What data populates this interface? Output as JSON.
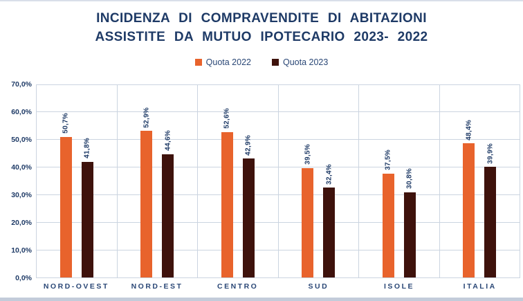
{
  "title": {
    "line1": "INCIDENZA DI COMPRAVENDITE DI ABITAZIONI",
    "line2": "ASSISTITE DA MUTUO IPOTECARIO 2023- 2022"
  },
  "colors": {
    "title_text": "#1e3a66",
    "axis_text": "#2a4776",
    "gridline": "#cbd4e0",
    "series_2022": "#e8632c",
    "series_2023": "#3e120c",
    "border_strip": "#c3ccda"
  },
  "chart_data": {
    "type": "bar",
    "title": "INCIDENZA DI COMPRAVENDITE DI ABITAZIONI ASSISTITE DA MUTUO IPOTECARIO 2023- 2022",
    "categories": [
      "NORD-OVEST",
      "NORD-EST",
      "CENTRO",
      "SUD",
      "ISOLE",
      "ITALIA"
    ],
    "series": [
      {
        "name": "Quota 2022",
        "color": "#e8632c",
        "values": [
          50.7,
          52.9,
          52.6,
          39.5,
          37.5,
          48.4
        ],
        "labels": [
          "50,7%",
          "52,9%",
          "52,6%",
          "39,5%",
          "37,5%",
          "48,4%"
        ]
      },
      {
        "name": "Quota 2023",
        "color": "#3e120c",
        "values": [
          41.8,
          44.6,
          42.9,
          32.4,
          30.8,
          39.9
        ],
        "labels": [
          "41,8%",
          "44,6%",
          "42,9%",
          "32,4%",
          "30,8%",
          "39,9%"
        ]
      }
    ],
    "xlabel": "",
    "ylabel": "",
    "ylim": [
      0,
      70
    ],
    "ytick_labels": [
      "70,0%",
      "60,0%",
      "50,0%",
      "40,0%",
      "30,0%",
      "20,0%",
      "10,0%",
      "0,0%"
    ],
    "grid": true,
    "legend_position": "top"
  }
}
